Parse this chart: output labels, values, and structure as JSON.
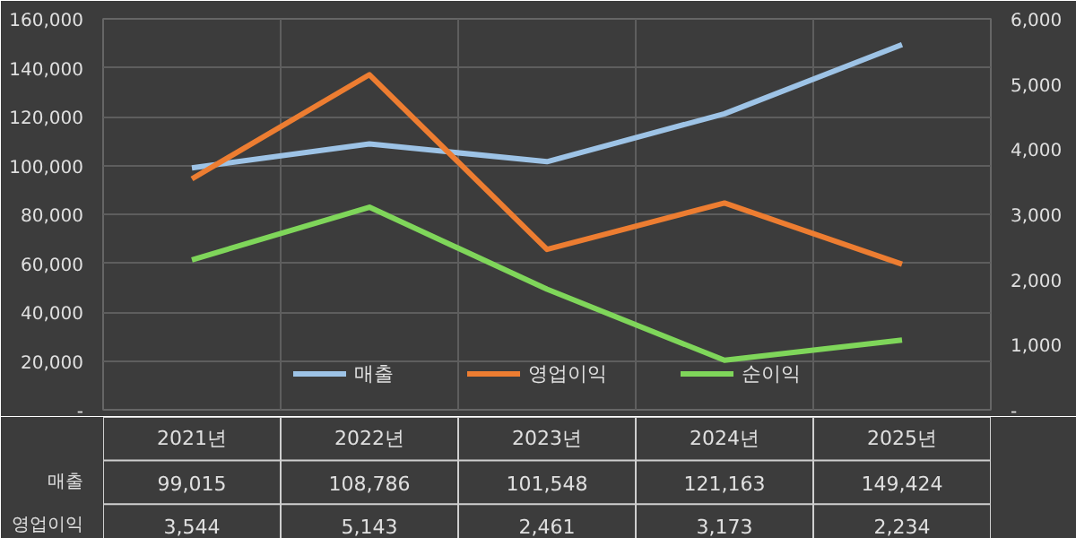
{
  "chart_data": {
    "type": "line",
    "categories": [
      "2021년",
      "2022년",
      "2023년",
      "2024년",
      "2025년"
    ],
    "series": [
      {
        "name": "매출",
        "color": "#9dc3e6",
        "values": [
          99015,
          108786,
          101548,
          121163,
          149424
        ],
        "value_labels": [
          "99,015",
          "108,786",
          "101,548",
          "121,163",
          "149,424"
        ]
      },
      {
        "name": "영업이익",
        "color": "#ed7d31",
        "axis": "y2",
        "values": [
          3544,
          5143,
          2461,
          3173,
          2234
        ],
        "value_labels": [
          "3,544",
          "5,143",
          "2,461",
          "3,173",
          "2,234"
        ]
      },
      {
        "name": "순이익",
        "color": "#7fd65a",
        "axis": "y2",
        "values": [
          2300,
          3110,
          1850,
          760,
          1070
        ]
      }
    ],
    "ylim": [
      0,
      160000
    ],
    "yticks": [
      {
        "value": 0,
        "label": "-"
      },
      {
        "value": 20000,
        "label": "20,000"
      },
      {
        "value": 40000,
        "label": "40,000"
      },
      {
        "value": 60000,
        "label": "60,000"
      },
      {
        "value": 80000,
        "label": "80,000"
      },
      {
        "value": 100000,
        "label": "100,000"
      },
      {
        "value": 120000,
        "label": "120,000"
      },
      {
        "value": 140000,
        "label": "140,000"
      },
      {
        "value": 160000,
        "label": "160,000"
      }
    ],
    "y2lim": [
      0,
      6000
    ],
    "y2ticks": [
      {
        "value": 0,
        "label": "-"
      },
      {
        "value": 1000,
        "label": "1,000"
      },
      {
        "value": 2000,
        "label": "2,000"
      },
      {
        "value": 3000,
        "label": "3,000"
      },
      {
        "value": 4000,
        "label": "4,000"
      },
      {
        "value": 5000,
        "label": "5,000"
      },
      {
        "value": 6000,
        "label": "6,000"
      }
    ],
    "grid": true,
    "legend": "bottom",
    "marker": "none",
    "line_style": "solid"
  }
}
